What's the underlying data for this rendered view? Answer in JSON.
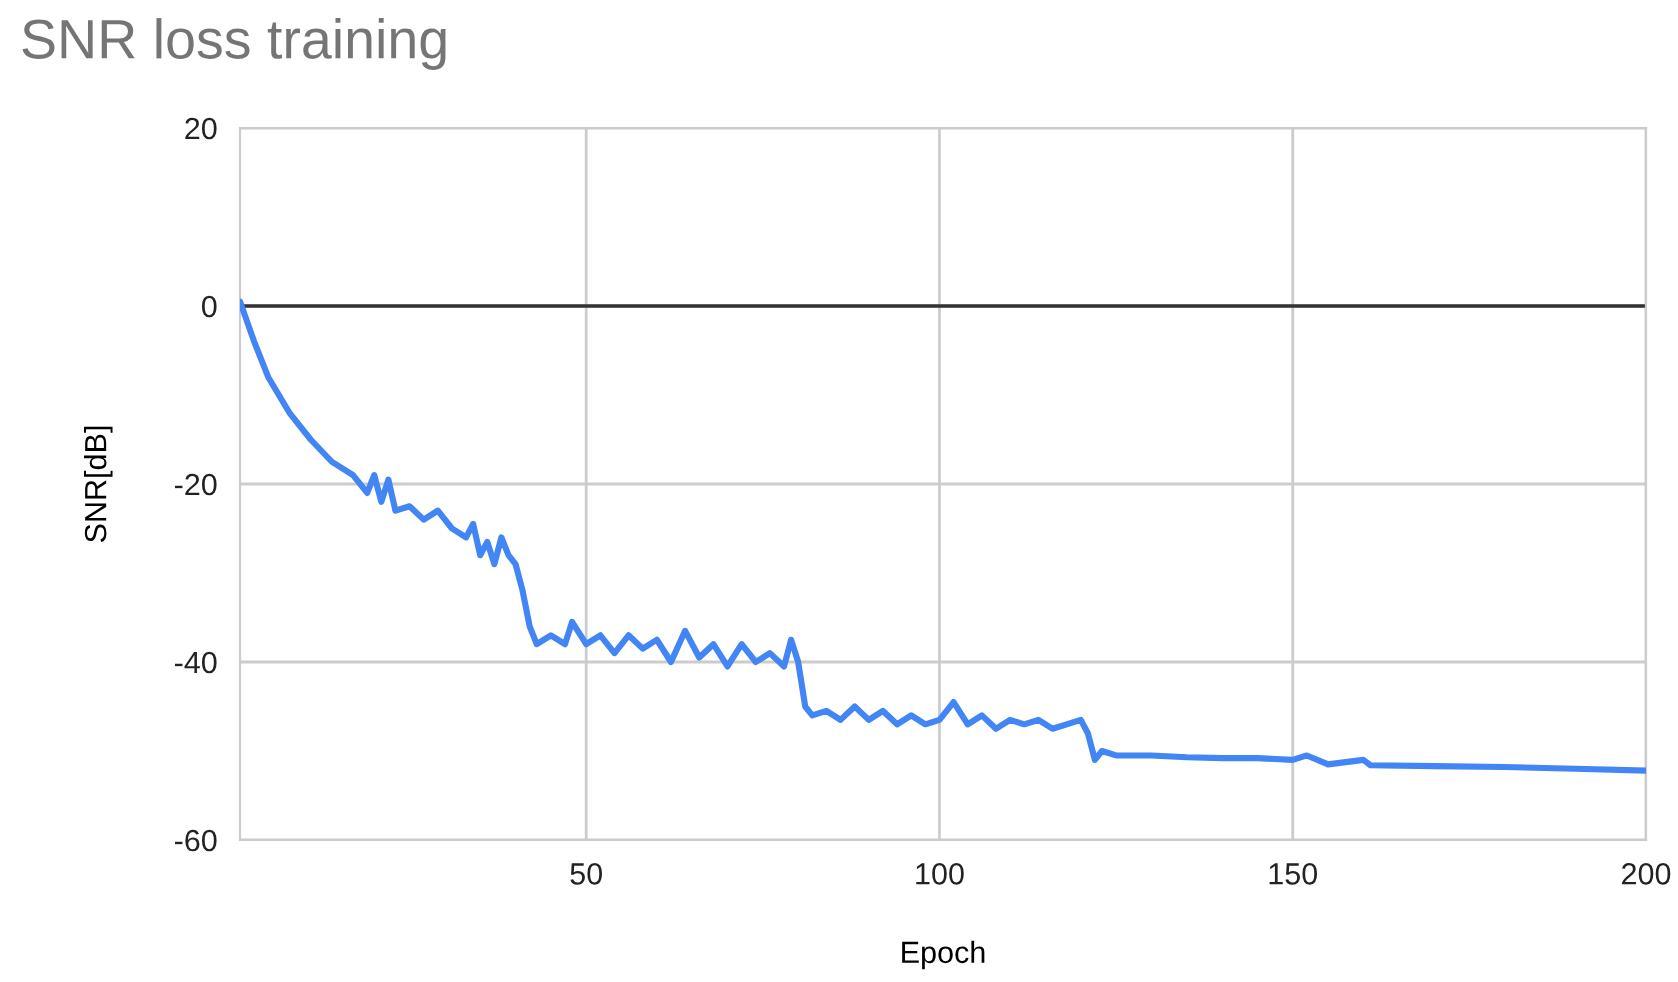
{
  "chart_data": {
    "type": "line",
    "title": "SNR loss training",
    "xlabel": "Epoch",
    "ylabel": "SNR[dB]",
    "xlim": [
      1,
      200
    ],
    "xticks": [
      50,
      100,
      150,
      200
    ],
    "ylim": [
      -60,
      20
    ],
    "yticks": [
      -60,
      -40,
      -20,
      0,
      20
    ],
    "grid": true,
    "legend": false,
    "ref_lines": [
      {
        "axis": "y",
        "value": 0,
        "color": "#333333"
      }
    ],
    "series": [
      {
        "color": "#4285f4",
        "x": [
          1,
          3,
          5,
          8,
          11,
          14,
          17,
          19,
          20,
          21,
          22,
          23,
          25,
          27,
          29,
          31,
          33,
          34,
          35,
          36,
          37,
          38,
          39,
          40,
          41,
          42,
          43,
          45,
          47,
          48,
          50,
          52,
          54,
          56,
          58,
          60,
          62,
          64,
          66,
          68,
          70,
          72,
          74,
          76,
          78,
          79,
          80,
          81,
          82,
          84,
          86,
          88,
          90,
          92,
          94,
          96,
          98,
          100,
          102,
          104,
          106,
          108,
          110,
          112,
          114,
          116,
          118,
          120,
          121,
          122,
          123,
          125,
          130,
          135,
          140,
          145,
          150,
          152,
          155,
          160,
          161,
          170,
          180,
          190,
          200
        ],
        "values": [
          0.5,
          -4,
          -8,
          -12,
          -15,
          -17.5,
          -19,
          -21,
          -19,
          -22,
          -19.5,
          -23,
          -22.5,
          -24,
          -23,
          -25,
          -26,
          -24.5,
          -28,
          -26.5,
          -29,
          -26,
          -28,
          -29,
          -32,
          -36,
          -38,
          -37,
          -38,
          -35.5,
          -38,
          -37,
          -39,
          -37,
          -38.5,
          -37.5,
          -40,
          -36.5,
          -39.5,
          -38,
          -40.5,
          -38,
          -40,
          -39,
          -40.5,
          -37.5,
          -40,
          -45,
          -46,
          -45.5,
          -46.5,
          -45,
          -46.5,
          -45.5,
          -47,
          -46,
          -47,
          -46.5,
          -44.5,
          -47,
          -46,
          -47.5,
          -46.5,
          -47,
          -46.5,
          -47.5,
          -47,
          -46.5,
          -48,
          -51,
          -50,
          -50.5,
          -50.5,
          -50.7,
          -50.8,
          -50.8,
          -51,
          -50.5,
          -51.5,
          -51,
          -51.6,
          -51.7,
          -51.8,
          -52,
          -52.2
        ]
      }
    ]
  }
}
